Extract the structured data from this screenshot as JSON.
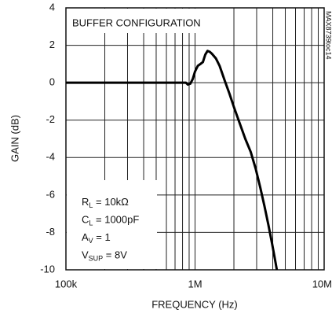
{
  "chart_data": {
    "type": "line",
    "annotation": "BUFFER CONFIGURATION",
    "figure_id": "MAX8739toc14",
    "conditions": [
      [
        "R",
        "L",
        " = 10kΩ"
      ],
      [
        "C",
        "L",
        " = 1000pF"
      ],
      [
        "A",
        "V",
        " = 1"
      ],
      [
        "V",
        "SUP",
        " = 8V"
      ]
    ],
    "x_label": "FREQUENCY (Hz)",
    "y_label": "GAIN (dB)",
    "xscale": "log",
    "x": [
      100000,
      300000,
      600000,
      850000,
      880000,
      920000,
      960000,
      1000000,
      1050000,
      1100000,
      1150000,
      1200000,
      1250000,
      1300000,
      1350000,
      1450000,
      1550000,
      1700000,
      1850000,
      2000000,
      2200000,
      2450000,
      2700000,
      2950000,
      3200000,
      3450000,
      3700000,
      3950000,
      4150000,
      4300000
    ],
    "series": [
      {
        "color": "#000000",
        "values": [
          0,
          0,
          0,
          0,
          -0.1,
          -0.05,
          0.2,
          0.6,
          0.9,
          1.0,
          1.1,
          1.5,
          1.7,
          1.65,
          1.55,
          1.3,
          0.9,
          0.1,
          -0.6,
          -1.3,
          -2.1,
          -3.0,
          -3.7,
          -4.6,
          -5.6,
          -6.6,
          -7.6,
          -8.6,
          -9.4,
          -10
        ]
      }
    ],
    "xlim": [
      100000,
      10000000
    ],
    "ylim": [
      -10,
      4
    ],
    "xticks": [
      {
        "value": 100000,
        "label": "100k"
      },
      {
        "value": 1000000,
        "label": "1M"
      },
      {
        "value": 10000000,
        "label": "10M"
      }
    ],
    "xminor": [
      200000,
      300000,
      400000,
      500000,
      600000,
      700000,
      800000,
      900000,
      2000000,
      3000000,
      4000000,
      5000000,
      6000000,
      7000000,
      8000000,
      9000000
    ],
    "yticks": [
      -10,
      -8,
      -6,
      -4,
      -2,
      0,
      2,
      4
    ],
    "grid": true
  }
}
